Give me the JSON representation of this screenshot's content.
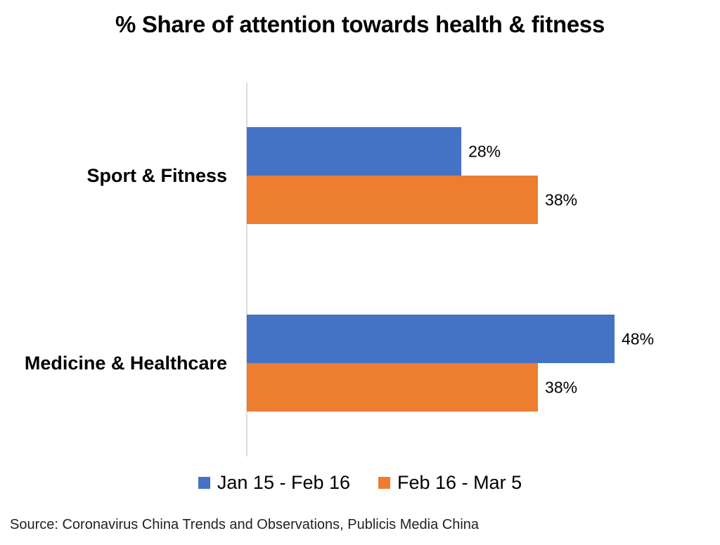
{
  "chart_data": {
    "type": "bar",
    "orientation": "horizontal",
    "title": "% Share of attention towards health & fitness",
    "categories": [
      "Sport & Fitness",
      "Medicine & Healthcare"
    ],
    "series": [
      {
        "name": "Jan 15 - Feb 16",
        "values": [
          28,
          48
        ],
        "labels": [
          "28%",
          "48%"
        ],
        "color": "#4472c4"
      },
      {
        "name": "Feb 16 - Mar 5",
        "values": [
          38,
          38
        ],
        "labels": [
          "38%",
          "38%"
        ],
        "color": "#ed7d31"
      }
    ],
    "xlim": [
      0,
      48
    ],
    "grid": false,
    "legend": "bottom-center"
  },
  "source": "Source: Coronavirus China Trends and Observations, Publicis Media China"
}
